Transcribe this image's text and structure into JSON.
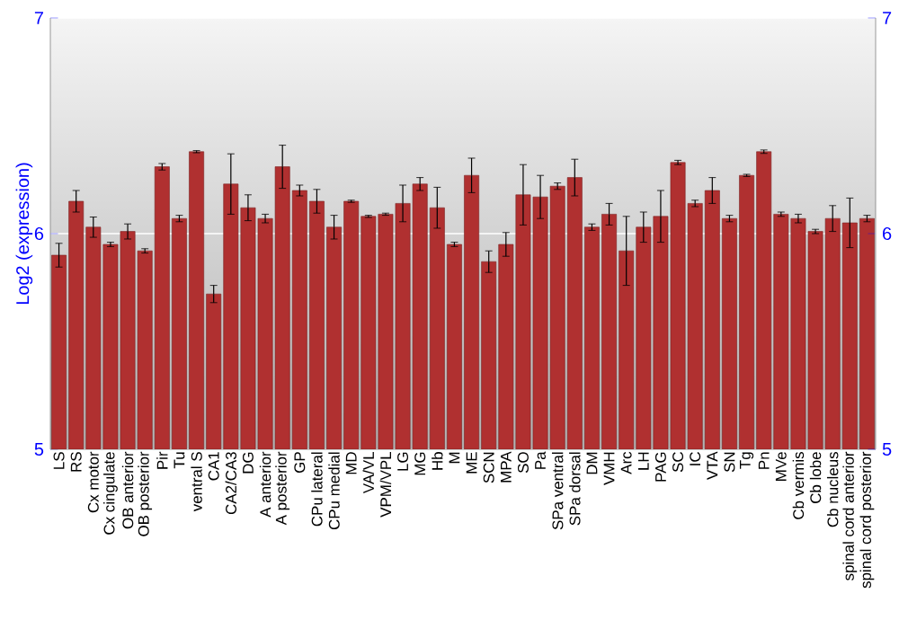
{
  "chart_data": {
    "type": "bar",
    "ylabel": "Log2 (expression)",
    "categories": [
      "LS",
      "RS",
      "Cx motor",
      "Cx cingulate",
      "OB anterior",
      "OB posterior",
      "Pir",
      "Tu",
      "ventral S",
      "CA1",
      "CA2/CA3",
      "DG",
      "A anterior",
      "A posterior",
      "GP",
      "CPu lateral",
      "CPu medial",
      "MD",
      "VA/VL",
      "VPM/VPL",
      "LG",
      "MG",
      "Hb",
      "M",
      "ME",
      "SCN",
      "MPA",
      "SO",
      "Pa",
      "SPa ventral",
      "SPa dorsal",
      "DM",
      "VMH",
      "Arc",
      "LH",
      "PAG",
      "SC",
      "IC",
      "VTA",
      "SN",
      "Tg",
      "Pn",
      "MVe",
      "Cb vermis",
      "Cb lobe",
      "Cb nucleus",
      "spinal cord anterior",
      "spinal cord posterior"
    ],
    "values": [
      5.9,
      6.15,
      6.03,
      5.95,
      6.01,
      5.92,
      6.31,
      6.07,
      6.38,
      5.72,
      6.23,
      6.12,
      6.07,
      6.31,
      6.2,
      6.15,
      6.03,
      6.15,
      6.08,
      6.09,
      6.14,
      6.23,
      6.12,
      5.95,
      6.27,
      5.87,
      5.95,
      6.18,
      6.17,
      6.22,
      6.26,
      6.03,
      6.09,
      5.92,
      6.03,
      6.08,
      6.33,
      6.14,
      6.2,
      6.07,
      6.27,
      6.38,
      6.09,
      6.07,
      6.01,
      6.07,
      6.05,
      6.07
    ],
    "errors": [
      0.055,
      0.05,
      0.047,
      0.01,
      0.035,
      0.01,
      0.015,
      0.015,
      0.005,
      0.04,
      0.14,
      0.06,
      0.02,
      0.1,
      0.025,
      0.055,
      0.055,
      0.005,
      0.005,
      0.005,
      0.085,
      0.03,
      0.095,
      0.01,
      0.08,
      0.05,
      0.055,
      0.14,
      0.1,
      0.015,
      0.085,
      0.015,
      0.05,
      0.16,
      0.07,
      0.12,
      0.01,
      0.015,
      0.06,
      0.015,
      0.005,
      0.008,
      0.01,
      0.02,
      0.01,
      0.06,
      0.115,
      0.015
    ],
    "color": "#b03030",
    "ylim": [
      5,
      7
    ],
    "yticks": [
      5,
      6,
      7
    ],
    "y2lim": [
      5,
      7
    ],
    "y2ticks": [
      5,
      6,
      7
    ],
    "grid": "y"
  }
}
